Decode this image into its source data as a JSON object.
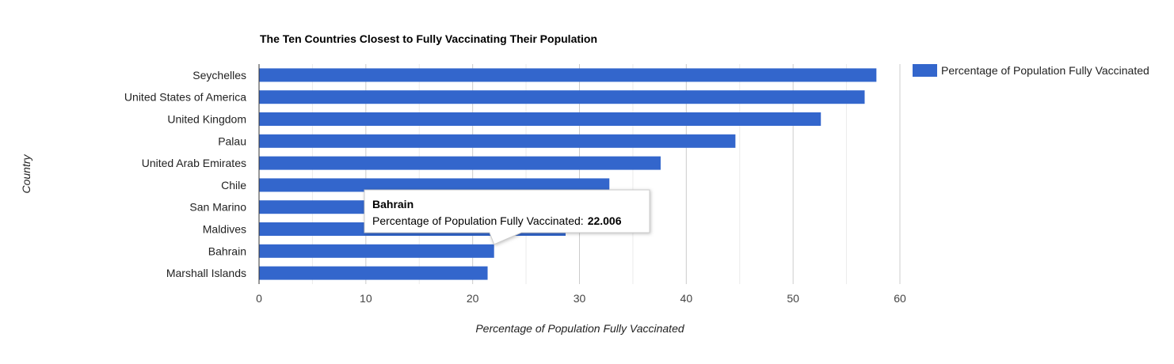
{
  "chart_data": {
    "type": "bar",
    "orientation": "horizontal",
    "title": "The Ten Countries Closest to Fully Vaccinating Their Population",
    "xlabel": "Percentage of Population Fully Vaccinated",
    "ylabel": "Country",
    "categories": [
      "Seychelles",
      "United States of America",
      "United Kingdom",
      "Palau",
      "United Arab Emirates",
      "Chile",
      "San Marino",
      "Maldives",
      "Bahrain",
      "Marshall Islands"
    ],
    "series": [
      {
        "name": "Percentage of Population Fully Vaccinated",
        "color": "#3366cc",
        "values": [
          57.8,
          56.7,
          52.6,
          44.6,
          37.6,
          32.8,
          30.5,
          28.7,
          22.006,
          21.4
        ]
      }
    ],
    "xlim": [
      0,
      60
    ],
    "xticks": [
      "0",
      "10",
      "20",
      "30",
      "40",
      "50",
      "60"
    ],
    "grid": true,
    "legend_position": "right",
    "tooltip": {
      "category": "Bahrain",
      "label": "Percentage of Population Fully Vaccinated:",
      "value": "22.006"
    }
  }
}
